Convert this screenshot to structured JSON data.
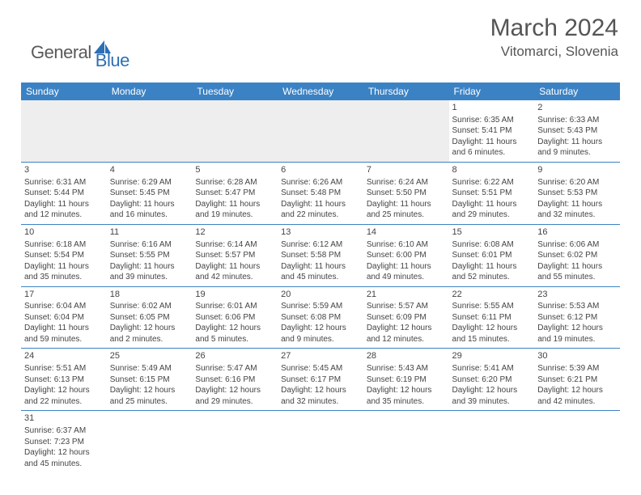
{
  "logo": {
    "general": "General",
    "blue": "Blue"
  },
  "title": "March 2024",
  "location": "Vitomarci, Slovenia",
  "colors": {
    "header_bg": "#3b82c4",
    "header_text": "#ffffff",
    "cell_border": "#3b82c4",
    "text": "#444444",
    "logo_general": "#5a5a5a",
    "logo_blue": "#2d6fb5"
  },
  "weekdays": [
    "Sunday",
    "Monday",
    "Tuesday",
    "Wednesday",
    "Thursday",
    "Friday",
    "Saturday"
  ],
  "weeks": [
    [
      null,
      null,
      null,
      null,
      null,
      {
        "n": "1",
        "sr": "6:35 AM",
        "ss": "5:41 PM",
        "dl": "11 hours and 6 minutes."
      },
      {
        "n": "2",
        "sr": "6:33 AM",
        "ss": "5:43 PM",
        "dl": "11 hours and 9 minutes."
      }
    ],
    [
      {
        "n": "3",
        "sr": "6:31 AM",
        "ss": "5:44 PM",
        "dl": "11 hours and 12 minutes."
      },
      {
        "n": "4",
        "sr": "6:29 AM",
        "ss": "5:45 PM",
        "dl": "11 hours and 16 minutes."
      },
      {
        "n": "5",
        "sr": "6:28 AM",
        "ss": "5:47 PM",
        "dl": "11 hours and 19 minutes."
      },
      {
        "n": "6",
        "sr": "6:26 AM",
        "ss": "5:48 PM",
        "dl": "11 hours and 22 minutes."
      },
      {
        "n": "7",
        "sr": "6:24 AM",
        "ss": "5:50 PM",
        "dl": "11 hours and 25 minutes."
      },
      {
        "n": "8",
        "sr": "6:22 AM",
        "ss": "5:51 PM",
        "dl": "11 hours and 29 minutes."
      },
      {
        "n": "9",
        "sr": "6:20 AM",
        "ss": "5:53 PM",
        "dl": "11 hours and 32 minutes."
      }
    ],
    [
      {
        "n": "10",
        "sr": "6:18 AM",
        "ss": "5:54 PM",
        "dl": "11 hours and 35 minutes."
      },
      {
        "n": "11",
        "sr": "6:16 AM",
        "ss": "5:55 PM",
        "dl": "11 hours and 39 minutes."
      },
      {
        "n": "12",
        "sr": "6:14 AM",
        "ss": "5:57 PM",
        "dl": "11 hours and 42 minutes."
      },
      {
        "n": "13",
        "sr": "6:12 AM",
        "ss": "5:58 PM",
        "dl": "11 hours and 45 minutes."
      },
      {
        "n": "14",
        "sr": "6:10 AM",
        "ss": "6:00 PM",
        "dl": "11 hours and 49 minutes."
      },
      {
        "n": "15",
        "sr": "6:08 AM",
        "ss": "6:01 PM",
        "dl": "11 hours and 52 minutes."
      },
      {
        "n": "16",
        "sr": "6:06 AM",
        "ss": "6:02 PM",
        "dl": "11 hours and 55 minutes."
      }
    ],
    [
      {
        "n": "17",
        "sr": "6:04 AM",
        "ss": "6:04 PM",
        "dl": "11 hours and 59 minutes."
      },
      {
        "n": "18",
        "sr": "6:02 AM",
        "ss": "6:05 PM",
        "dl": "12 hours and 2 minutes."
      },
      {
        "n": "19",
        "sr": "6:01 AM",
        "ss": "6:06 PM",
        "dl": "12 hours and 5 minutes."
      },
      {
        "n": "20",
        "sr": "5:59 AM",
        "ss": "6:08 PM",
        "dl": "12 hours and 9 minutes."
      },
      {
        "n": "21",
        "sr": "5:57 AM",
        "ss": "6:09 PM",
        "dl": "12 hours and 12 minutes."
      },
      {
        "n": "22",
        "sr": "5:55 AM",
        "ss": "6:11 PM",
        "dl": "12 hours and 15 minutes."
      },
      {
        "n": "23",
        "sr": "5:53 AM",
        "ss": "6:12 PM",
        "dl": "12 hours and 19 minutes."
      }
    ],
    [
      {
        "n": "24",
        "sr": "5:51 AM",
        "ss": "6:13 PM",
        "dl": "12 hours and 22 minutes."
      },
      {
        "n": "25",
        "sr": "5:49 AM",
        "ss": "6:15 PM",
        "dl": "12 hours and 25 minutes."
      },
      {
        "n": "26",
        "sr": "5:47 AM",
        "ss": "6:16 PM",
        "dl": "12 hours and 29 minutes."
      },
      {
        "n": "27",
        "sr": "5:45 AM",
        "ss": "6:17 PM",
        "dl": "12 hours and 32 minutes."
      },
      {
        "n": "28",
        "sr": "5:43 AM",
        "ss": "6:19 PM",
        "dl": "12 hours and 35 minutes."
      },
      {
        "n": "29",
        "sr": "5:41 AM",
        "ss": "6:20 PM",
        "dl": "12 hours and 39 minutes."
      },
      {
        "n": "30",
        "sr": "5:39 AM",
        "ss": "6:21 PM",
        "dl": "12 hours and 42 minutes."
      }
    ],
    [
      {
        "n": "31",
        "sr": "6:37 AM",
        "ss": "7:23 PM",
        "dl": "12 hours and 45 minutes."
      },
      null,
      null,
      null,
      null,
      null,
      null
    ]
  ],
  "labels": {
    "sunrise": "Sunrise:",
    "sunset": "Sunset:",
    "daylight": "Daylight:"
  }
}
